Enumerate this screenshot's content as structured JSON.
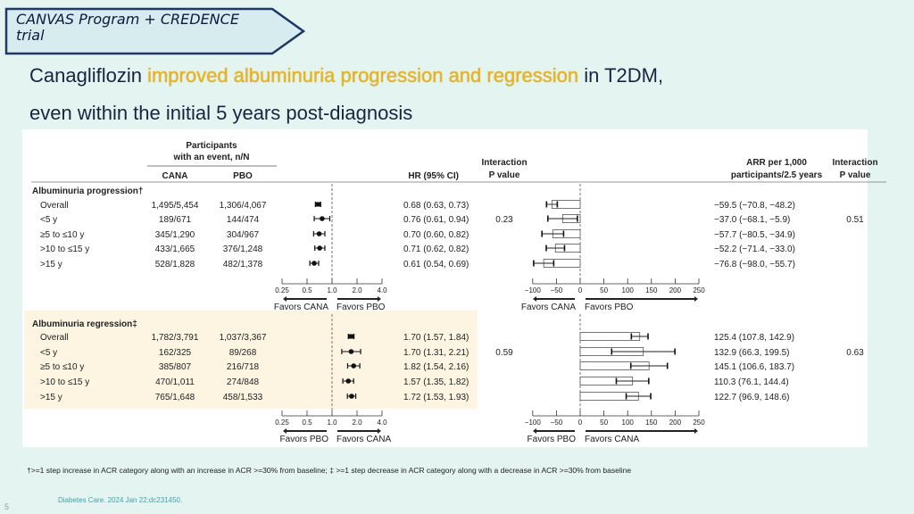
{
  "tag": {
    "line1": "CANVAS Program + CREDENCE",
    "line2": "trial"
  },
  "title": {
    "line1_pre": "Canagliflozin ",
    "line1_highlight": "improved albuminuria progression and regression",
    "line1_post": " in T2DM,",
    "line2": "even within the initial 5 years post-diagnosis"
  },
  "colors": {
    "background": "#e4f4f0",
    "highlight": "#e6b422",
    "regression_band": "#fdf5e2",
    "tag_border": "#1f3864",
    "citation": "#3ea3ad"
  },
  "chart_data": {
    "type": "forest",
    "headers": {
      "participants1": "Participants",
      "participants2": "with an event, n/N",
      "cana": "CANA",
      "pbo": "PBO",
      "hr": "HR (95% CI)",
      "pval1": "Interaction",
      "pval2": "P value",
      "arr1": "ARR per 1,000",
      "arr2": "participants/2.5 years"
    },
    "hr_axis": {
      "scale": "log",
      "ticks": [
        0.25,
        0.5,
        1.0,
        2.0,
        4.0
      ],
      "tick_labels": [
        "0.25",
        "0.5",
        "1.0",
        "2.0",
        "4.0"
      ],
      "reference": 1.0
    },
    "arr_axis": {
      "scale": "linear",
      "ticks": [
        -100,
        -50,
        0,
        50,
        100,
        150,
        200,
        250
      ],
      "tick_labels": [
        "−100",
        "−50",
        "0",
        "50",
        "100",
        "150",
        "200",
        "250"
      ],
      "reference": 0
    },
    "panels": [
      {
        "section": "Albuminuria progression†",
        "hr_favors": [
          "Favors CANA",
          "Favors PBO"
        ],
        "arr_favors": [
          "Favors CANA",
          "Favors PBO"
        ],
        "interaction_p_hr": "0.23",
        "interaction_p_arr": "0.51",
        "rows": [
          {
            "label": "Overall",
            "cana": "1,495/5,454",
            "pbo": "1,306/4,067",
            "hr": 0.68,
            "hr_lo": 0.63,
            "hr_hi": 0.73,
            "hr_text": "0.68 (0.63, 0.73)",
            "arr": -59.5,
            "arr_lo": -70.8,
            "arr_hi": -48.2,
            "arr_text": "−59.5 (−70.8, −48.2)"
          },
          {
            "label": "<5 y",
            "cana": "189/671",
            "pbo": "144/474",
            "hr": 0.76,
            "hr_lo": 0.61,
            "hr_hi": 0.94,
            "hr_text": "0.76 (0.61, 0.94)",
            "arr": -37.0,
            "arr_lo": -68.1,
            "arr_hi": -5.9,
            "arr_text": "−37.0  (−68.1, −5.9)"
          },
          {
            "label": "≥5 to ≤10 y",
            "cana": "345/1,290",
            "pbo": "304/967",
            "hr": 0.7,
            "hr_lo": 0.6,
            "hr_hi": 0.82,
            "hr_text": "0.70 (0.60, 0.82)",
            "arr": -57.7,
            "arr_lo": -80.5,
            "arr_hi": -34.9,
            "arr_text": "−57.7 (−80.5, −34.9)"
          },
          {
            "label": ">10 to ≤15 y",
            "cana": "433/1,665",
            "pbo": "376/1,248",
            "hr": 0.71,
            "hr_lo": 0.62,
            "hr_hi": 0.82,
            "hr_text": "0.71 (0.62, 0.82)",
            "arr": -52.2,
            "arr_lo": -71.4,
            "arr_hi": -33.0,
            "arr_text": "−52.2 (−71.4, −33.0)"
          },
          {
            "label": ">15 y",
            "cana": "528/1,828",
            "pbo": "482/1,378",
            "hr": 0.61,
            "hr_lo": 0.54,
            "hr_hi": 0.69,
            "hr_text": "0.61 (0.54, 0.69)",
            "arr": -76.8,
            "arr_lo": -98.0,
            "arr_hi": -55.7,
            "arr_text": "−76.8 (−98.0, −55.7)"
          }
        ]
      },
      {
        "section": "Albuminuria regression‡",
        "hr_favors": [
          "Favors PBO",
          "Favors CANA"
        ],
        "arr_favors": [
          "Favors PBO",
          "Favors CANA"
        ],
        "interaction_p_hr": "0.59",
        "interaction_p_arr": "0.63",
        "rows": [
          {
            "label": "Overall",
            "cana": "1,782/3,791",
            "pbo": "1,037/3,367",
            "hr": 1.7,
            "hr_lo": 1.57,
            "hr_hi": 1.84,
            "hr_text": "1.70 (1.57, 1.84)",
            "arr": 125.4,
            "arr_lo": 107.8,
            "arr_hi": 142.9,
            "arr_text": "125.4 (107.8, 142.9)"
          },
          {
            "label": "<5 y",
            "cana": "162/325",
            "pbo": "89/268",
            "hr": 1.7,
            "hr_lo": 1.31,
            "hr_hi": 2.21,
            "hr_text": "1.70 (1.31, 2.21)",
            "arr": 132.9,
            "arr_lo": 66.3,
            "arr_hi": 199.5,
            "arr_text": "132.9 (66.3, 199.5)"
          },
          {
            "label": "≥5 to ≤10 y",
            "cana": "385/807",
            "pbo": "216/718",
            "hr": 1.82,
            "hr_lo": 1.54,
            "hr_hi": 2.16,
            "hr_text": "1.82 (1.54, 2.16)",
            "arr": 145.1,
            "arr_lo": 106.6,
            "arr_hi": 183.7,
            "arr_text": "145.1 (106.6, 183.7)"
          },
          {
            "label": ">10 to ≤15 y",
            "cana": "470/1,011",
            "pbo": "274/848",
            "hr": 1.57,
            "hr_lo": 1.35,
            "hr_hi": 1.82,
            "hr_text": "1.57 (1.35, 1.82)",
            "arr": 110.3,
            "arr_lo": 76.1,
            "arr_hi": 144.4,
            "arr_text": "110.3 (76.1, 144.4)"
          },
          {
            "label": ">15 y",
            "cana": "765/1,648",
            "pbo": "458/1,533",
            "hr": 1.72,
            "hr_lo": 1.53,
            "hr_hi": 1.93,
            "hr_text": "1.72 (1.53, 1.93)",
            "arr": 122.7,
            "arr_lo": 96.9,
            "arr_hi": 148.6,
            "arr_text": "122.7 (96.9, 148.6)"
          }
        ]
      }
    ]
  },
  "footnote": "†>=1 step increase in ACR category along with an increase in ACR >=30% from baseline; ‡ >=1 step decrease in ACR category along with a decrease in ACR >=30% from baseline",
  "citation": "Diabetes Care. 2024 Jan 22:dc231450.",
  "page_number": "5"
}
